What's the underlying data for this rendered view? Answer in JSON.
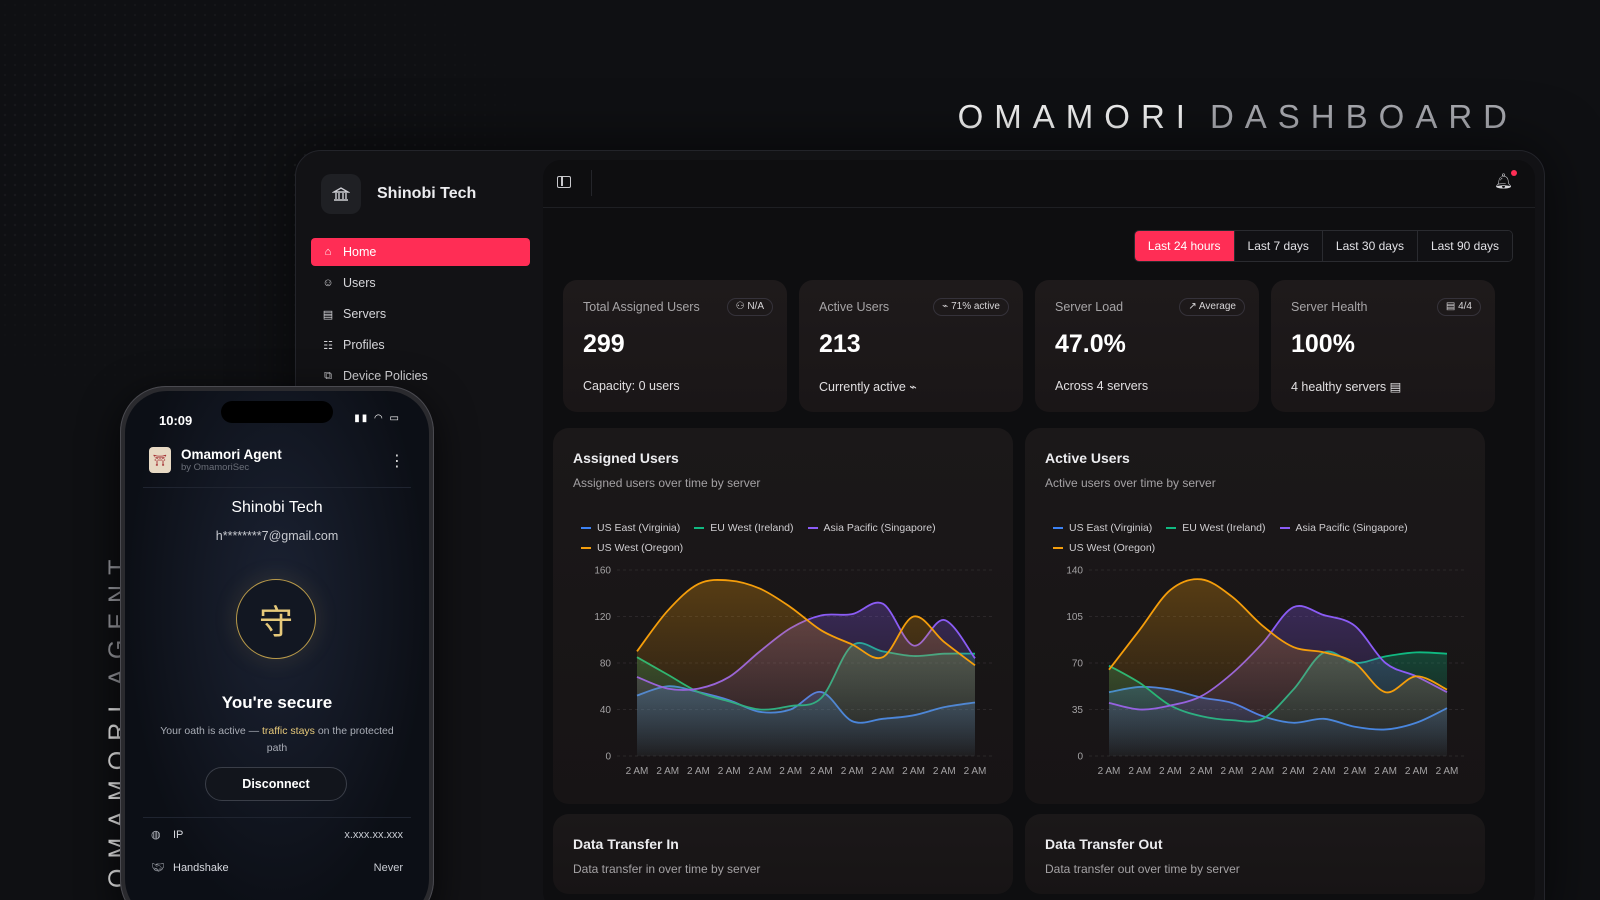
{
  "brand": {
    "title_1": "OMAMORI",
    "title_2": "DASHBOARD"
  },
  "agent_vertical": {
    "word_1": "OMAMORI",
    "word_2": "AGENT"
  },
  "sidebar": {
    "org_name": "Shinobi Tech",
    "org_icon": "bank-icon",
    "items": [
      {
        "label": "Home",
        "icon": "home-icon",
        "active": true
      },
      {
        "label": "Users",
        "icon": "users-icon",
        "active": false
      },
      {
        "label": "Servers",
        "icon": "server-icon",
        "active": false
      },
      {
        "label": "Profiles",
        "icon": "profiles-icon",
        "active": false
      },
      {
        "label": "Device Policies",
        "icon": "devices-icon",
        "active": false
      }
    ]
  },
  "time_ranges": [
    "Last 24 hours",
    "Last 7 days",
    "Last 30 days",
    "Last 90 days"
  ],
  "active_range": "Last 24 hours",
  "stats": [
    {
      "label": "Total Assigned Users",
      "badge": "N/A",
      "value": "299",
      "sub": "Capacity: 0 users"
    },
    {
      "label": "Active Users",
      "badge": "71% active",
      "value": "213",
      "sub": "Currently active"
    },
    {
      "label": "Server Load",
      "badge": "Average",
      "value": "47.0%",
      "sub": "Across 4 servers"
    },
    {
      "label": "Server Health",
      "badge": "4/4",
      "value": "100%",
      "sub": "4 healthy servers"
    }
  ],
  "colors": {
    "accent": "#ff2d55",
    "us_east": "#3b82f6",
    "eu_west": "#10b981",
    "asia_pacific": "#8b5cf6",
    "us_west": "#f59e0b"
  },
  "chart_data": [
    {
      "type": "area",
      "title": "Assigned Users",
      "subtitle": "Assigned users over time by server",
      "x": [
        "2 AM",
        "2 AM",
        "2 AM",
        "2 AM",
        "2 AM",
        "2 AM",
        "2 AM",
        "2 AM",
        "2 AM",
        "2 AM",
        "2 AM",
        "2 AM"
      ],
      "ylim": [
        0,
        160
      ],
      "yticks": [
        0,
        40,
        80,
        120,
        160
      ],
      "legend": "top-left",
      "grid": true,
      "series": [
        {
          "name": "US East (Virginia)",
          "color": "#3b82f6",
          "values": [
            52,
            60,
            55,
            48,
            38,
            40,
            55,
            30,
            32,
            35,
            42,
            46
          ]
        },
        {
          "name": "EU West (Ireland)",
          "color": "#10b981",
          "values": [
            85,
            70,
            55,
            47,
            40,
            43,
            50,
            95,
            90,
            86,
            88,
            88
          ]
        },
        {
          "name": "Asia Pacific (Singapore)",
          "color": "#8b5cf6",
          "values": [
            68,
            58,
            58,
            68,
            90,
            110,
            121,
            122,
            131,
            95,
            117,
            84
          ]
        },
        {
          "name": "US West (Oregon)",
          "color": "#f59e0b",
          "values": [
            90,
            125,
            148,
            151,
            144,
            128,
            108,
            96,
            85,
            120,
            98,
            78
          ]
        }
      ]
    },
    {
      "type": "area",
      "title": "Active Users",
      "subtitle": "Active users over time by server",
      "x": [
        "2 AM",
        "2 AM",
        "2 AM",
        "2 AM",
        "2 AM",
        "2 AM",
        "2 AM",
        "2 AM",
        "2 AM",
        "2 AM",
        "2 AM",
        "2 AM"
      ],
      "ylim": [
        0,
        140
      ],
      "yticks": [
        0,
        35,
        70,
        105,
        140
      ],
      "legend": "top-left",
      "grid": true,
      "series": [
        {
          "name": "US East (Virginia)",
          "color": "#3b82f6",
          "values": [
            48,
            52,
            50,
            44,
            40,
            30,
            25,
            28,
            22,
            20,
            25,
            36
          ]
        },
        {
          "name": "EU West (Ireland)",
          "color": "#10b981",
          "values": [
            68,
            55,
            38,
            30,
            27,
            28,
            50,
            78,
            70,
            75,
            78,
            77
          ]
        },
        {
          "name": "Asia Pacific (Singapore)",
          "color": "#8b5cf6",
          "values": [
            40,
            35,
            38,
            45,
            62,
            85,
            112,
            106,
            98,
            70,
            60,
            48
          ]
        },
        {
          "name": "US West (Oregon)",
          "color": "#f59e0b",
          "values": [
            65,
            95,
            125,
            133,
            120,
            98,
            82,
            78,
            70,
            48,
            60,
            50
          ]
        }
      ]
    }
  ],
  "bottom_cards": [
    {
      "title": "Data Transfer In",
      "subtitle": "Data transfer in over time by server"
    },
    {
      "title": "Data Transfer Out",
      "subtitle": "Data transfer out over time by server"
    }
  ],
  "phone": {
    "time": "10:09",
    "app_name": "Omamori Agent",
    "app_by": "by OmamoriSec",
    "org": "Shinobi Tech",
    "email": "h********7@gmail.com",
    "emblem": "守",
    "status": "You're secure",
    "desc_1": "Your oath is active — ",
    "desc_hl": "traffic stays",
    "desc_2": " on the protected path",
    "disconnect": "Disconnect",
    "ip_label": "IP",
    "ip_value": "x.xxx.xx.xxx",
    "handshake_label": "Handshake",
    "handshake_value": "Never"
  }
}
